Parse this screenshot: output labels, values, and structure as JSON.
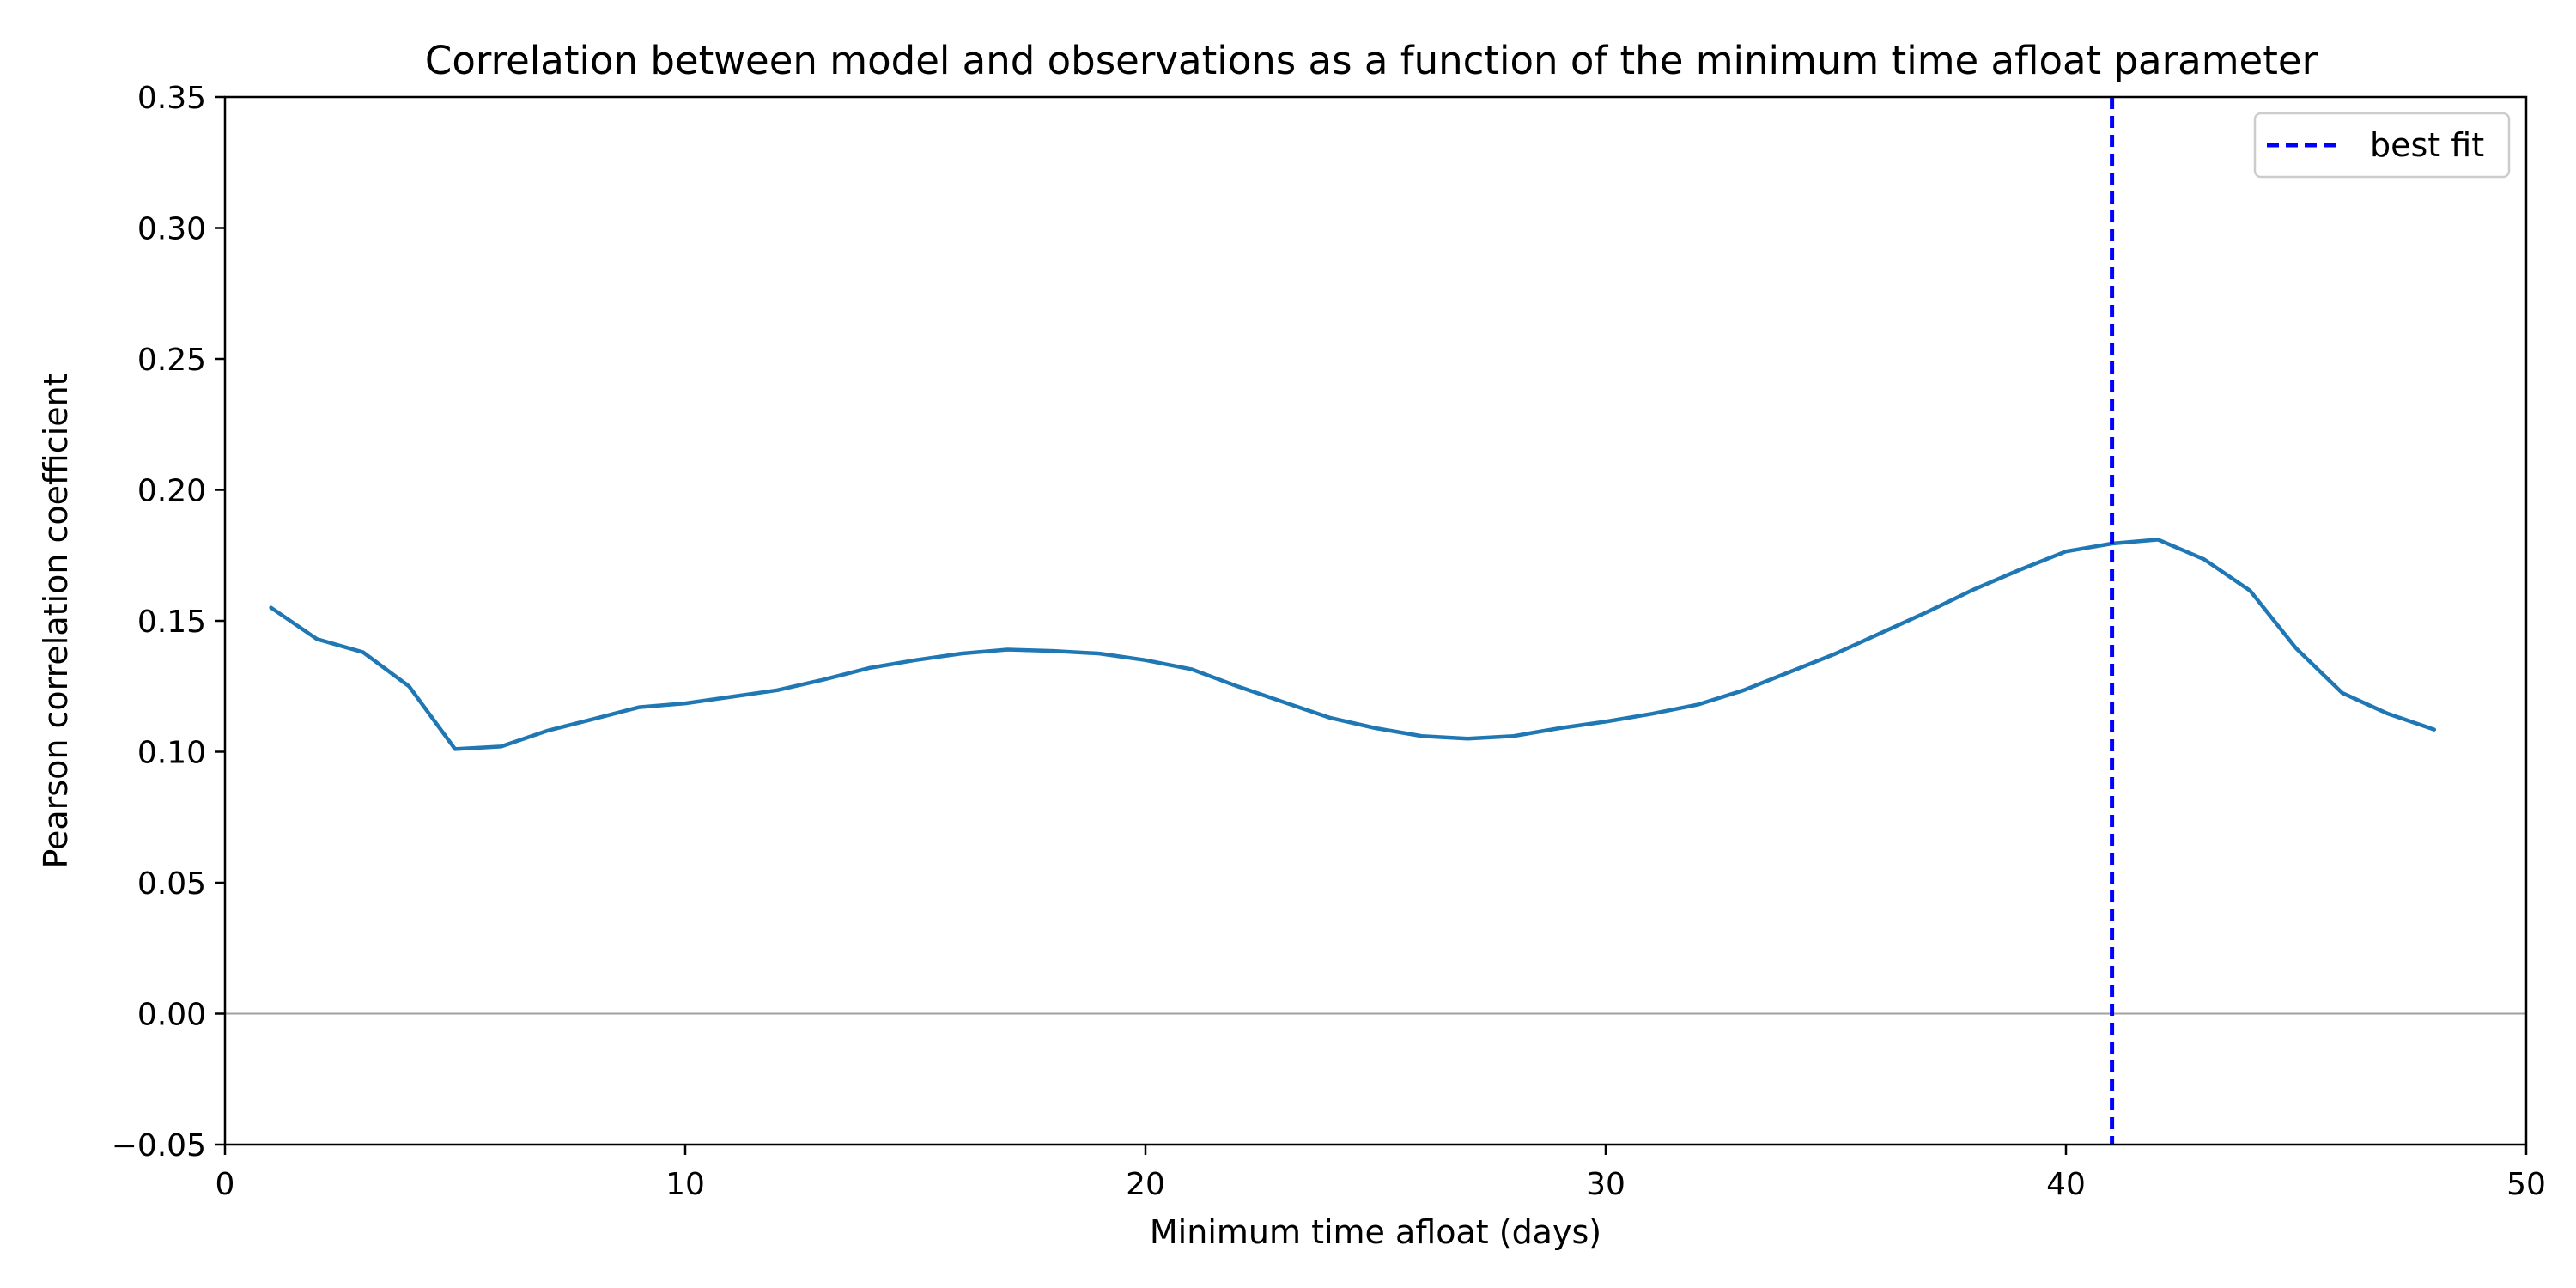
{
  "chart_data": {
    "type": "line",
    "title": "Correlation between model and observations as a function of the minimum time afloat parameter",
    "xlabel": "Minimum time afloat (days)",
    "ylabel": "Pearson correlation coefficient",
    "xlim": [
      0,
      50
    ],
    "ylim": [
      -0.05,
      0.35
    ],
    "xticks": [
      0,
      10,
      20,
      30,
      40,
      50
    ],
    "xtick_labels": [
      "0",
      "10",
      "20",
      "30",
      "40",
      "50"
    ],
    "yticks": [
      -0.05,
      0.0,
      0.05,
      0.1,
      0.15,
      0.2,
      0.25,
      0.3,
      0.35
    ],
    "ytick_labels": [
      "−0.05",
      "0.00",
      "0.05",
      "0.10",
      "0.15",
      "0.20",
      "0.25",
      "0.30",
      "0.35"
    ],
    "grid": false,
    "zero_line": {
      "y": 0.0,
      "color": "#a0a0a0"
    },
    "series": [
      {
        "name": "correlation",
        "color": "#1f77b4",
        "x": [
          1,
          2,
          3,
          4,
          5,
          6,
          7,
          8,
          9,
          10,
          11,
          12,
          13,
          14,
          15,
          16,
          17,
          18,
          19,
          20,
          21,
          22,
          23,
          24,
          25,
          26,
          27,
          28,
          29,
          30,
          31,
          32,
          33,
          34,
          35,
          36,
          37,
          38,
          39,
          40,
          41,
          42,
          43,
          44,
          45,
          46,
          47,
          48
        ],
        "y": [
          0.155,
          0.143,
          0.138,
          0.125,
          0.101,
          0.102,
          0.108,
          0.1125,
          0.117,
          0.1185,
          0.121,
          0.1235,
          0.1275,
          0.132,
          0.135,
          0.1375,
          0.139,
          0.1385,
          0.1375,
          0.135,
          0.1315,
          0.125,
          0.119,
          0.113,
          0.109,
          0.106,
          0.105,
          0.106,
          0.109,
          0.1115,
          0.1145,
          0.118,
          0.1235,
          0.1305,
          0.1375,
          0.1455,
          0.1535,
          0.162,
          0.1695,
          0.1765,
          0.1795,
          0.181,
          0.1735,
          0.1615,
          0.1395,
          0.1225,
          0.1145,
          0.1085
        ]
      }
    ],
    "vline": {
      "x": 41,
      "label": "best fit",
      "color": "#0000ff",
      "style": "dashed"
    },
    "legend": {
      "position": "top-right",
      "entries": [
        "best fit"
      ]
    }
  }
}
